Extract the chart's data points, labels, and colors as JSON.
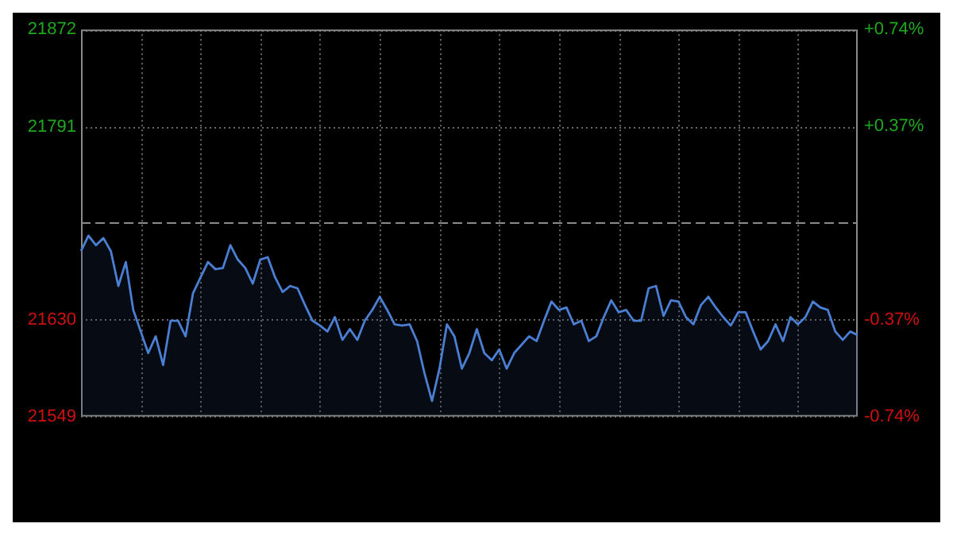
{
  "chart_data": {
    "type": "area",
    "categories": [
      null,
      null,
      null,
      null,
      null,
      null,
      null,
      null,
      null,
      null,
      null,
      null,
      null,
      null,
      null,
      null,
      null,
      null,
      null,
      null,
      null,
      null,
      null,
      null,
      null,
      null,
      null,
      null,
      null,
      null,
      null,
      null,
      null,
      null,
      null,
      null,
      null,
      null,
      null,
      null,
      null,
      null,
      null,
      null,
      null,
      null,
      null,
      null,
      null,
      null,
      null,
      null,
      null,
      null,
      null,
      null,
      null,
      null,
      null,
      null,
      null,
      null,
      null,
      null,
      null,
      null,
      null,
      null,
      null,
      null,
      null,
      null,
      null,
      null,
      null,
      null,
      null,
      null,
      null,
      null,
      null,
      null,
      null,
      null,
      null,
      null,
      null,
      null,
      null,
      null,
      null,
      null,
      null,
      null,
      null,
      null,
      null,
      null,
      null,
      null,
      null,
      null,
      null,
      null,
      null
    ],
    "series": [
      {
        "color": "#4a7fd4",
        "values": [
          21687,
          21700,
          21692,
          21698,
          21687,
          21658,
          21678,
          21638,
          21620,
          21602,
          21616,
          21592,
          21629,
          21629,
          21616,
          21652,
          21665,
          21678,
          21672,
          21673,
          21692,
          21680,
          21673,
          21660,
          21680,
          21682,
          21665,
          21653,
          21658,
          21656,
          21642,
          21629,
          21625,
          21620,
          21632,
          21613,
          21622,
          21613,
          21629,
          21638,
          21649,
          21638,
          21626,
          21625,
          21626,
          21612,
          21585,
          21562,
          21589,
          21626,
          21616,
          21589,
          21602,
          21622,
          21602,
          21596,
          21605,
          21589,
          21602,
          21609,
          21616,
          21612,
          21629,
          21645,
          21638,
          21640,
          21626,
          21629,
          21612,
          21616,
          21632,
          21646,
          21636,
          21638,
          21629,
          21629,
          21656,
          21658,
          21633,
          21646,
          21645,
          21632,
          21626,
          21642,
          21649,
          21640,
          21632,
          21625,
          21636,
          21636,
          21620,
          21605,
          21612,
          21626,
          21612,
          21632,
          21626,
          21632,
          21645,
          21640,
          21638,
          21620,
          21613,
          21620,
          21617
        ]
      }
    ],
    "ylim": [
      21549,
      21872
    ],
    "yticks": [
      21549,
      21630,
      21791,
      21872
    ],
    "y2lim": [
      -0.74,
      0.74
    ],
    "y2ticks": [
      {
        "value": -0.74,
        "label": "-0.74%"
      },
      {
        "value": -0.37,
        "label": "-0.37%"
      },
      {
        "value": 0.37,
        "label": "+0.37%"
      },
      {
        "value": 0.74,
        "label": "+0.74%"
      }
    ],
    "ref_lines": [
      {
        "axis": "y",
        "value": 21711,
        "color": "#8a8a8a",
        "line_style": "dashed"
      }
    ],
    "grid": true,
    "legend": false,
    "marker": "none",
    "line_style": "solid"
  }
}
